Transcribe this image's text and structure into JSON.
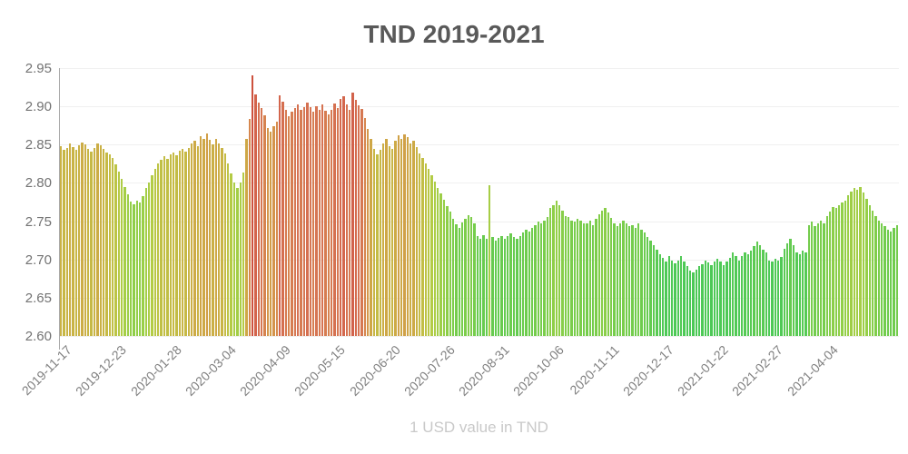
{
  "header": {
    "title": "TND 2019-2021"
  },
  "footer": {
    "caption": "1 USD value in TND"
  },
  "chart_data": {
    "type": "bar",
    "title": "TND 2019-2021",
    "xlabel": "",
    "ylabel": "",
    "subtitle_bottom": "1 USD value in TND",
    "ylim": [
      2.6,
      2.95
    ],
    "y_ticks": [
      2.6,
      2.65,
      2.7,
      2.75,
      2.8,
      2.85,
      2.9,
      2.95
    ],
    "grid": true,
    "legend": "none",
    "x_start_date": "2019-11-17",
    "x_interval_days": 2,
    "x_tick_every_bars": 18,
    "x_tick_labels": [
      "2019-11-17",
      "2019-12-23",
      "2020-01-28",
      "2020-03-04",
      "2020-04-09",
      "2020-05-15",
      "2020-06-20",
      "2020-07-26",
      "2020-08-31",
      "2020-10-06",
      "2020-11-11",
      "2020-12-17",
      "2021-01-22",
      "2021-02-27",
      "2021-04-04"
    ],
    "values": [
      2.848,
      2.843,
      2.846,
      2.851,
      2.847,
      2.843,
      2.849,
      2.853,
      2.85,
      2.845,
      2.841,
      2.846,
      2.852,
      2.849,
      2.845,
      2.84,
      2.837,
      2.832,
      2.824,
      2.815,
      2.805,
      2.795,
      2.785,
      2.776,
      2.772,
      2.777,
      2.774,
      2.783,
      2.794,
      2.801,
      2.81,
      2.818,
      2.825,
      2.83,
      2.835,
      2.831,
      2.837,
      2.84,
      2.836,
      2.842,
      2.845,
      2.841,
      2.846,
      2.851,
      2.855,
      2.848,
      2.861,
      2.857,
      2.865,
      2.856,
      2.85,
      2.857,
      2.852,
      2.846,
      2.838,
      2.826,
      2.812,
      2.8,
      2.793,
      2.801,
      2.814,
      2.858,
      2.884,
      2.94,
      2.916,
      2.905,
      2.898,
      2.888,
      2.872,
      2.867,
      2.874,
      2.88,
      2.915,
      2.906,
      2.896,
      2.887,
      2.893,
      2.898,
      2.903,
      2.895,
      2.899,
      2.905,
      2.899,
      2.893,
      2.9,
      2.896,
      2.902,
      2.894,
      2.889,
      2.896,
      2.904,
      2.898,
      2.91,
      2.913,
      2.902,
      2.896,
      2.918,
      2.909,
      2.901,
      2.897,
      2.885,
      2.871,
      2.858,
      2.845,
      2.837,
      2.843,
      2.852,
      2.858,
      2.848,
      2.845,
      2.855,
      2.862,
      2.857,
      2.864,
      2.86,
      2.851,
      2.855,
      2.847,
      2.839,
      2.833,
      2.826,
      2.818,
      2.81,
      2.802,
      2.793,
      2.786,
      2.778,
      2.77,
      2.762,
      2.753,
      2.746,
      2.741,
      2.748,
      2.753,
      2.758,
      2.755,
      2.747,
      2.731,
      2.727,
      2.732,
      2.727,
      2.797,
      2.729,
      2.725,
      2.728,
      2.731,
      2.727,
      2.73,
      2.734,
      2.729,
      2.727,
      2.731,
      2.735,
      2.739,
      2.737,
      2.741,
      2.745,
      2.749,
      2.747,
      2.751,
      2.755,
      2.767,
      2.771,
      2.777,
      2.771,
      2.764,
      2.757,
      2.755,
      2.751,
      2.749,
      2.753,
      2.751,
      2.747,
      2.747,
      2.751,
      2.745,
      2.753,
      2.759,
      2.764,
      2.767,
      2.761,
      2.754,
      2.747,
      2.743,
      2.747,
      2.751,
      2.747,
      2.743,
      2.745,
      2.741,
      2.747,
      2.739,
      2.735,
      2.729,
      2.725,
      2.719,
      2.713,
      2.707,
      2.702,
      2.697,
      2.704,
      2.699,
      2.695,
      2.699,
      2.704,
      2.697,
      2.691,
      2.686,
      2.683,
      2.687,
      2.691,
      2.694,
      2.699,
      2.696,
      2.692,
      2.697,
      2.701,
      2.697,
      2.693,
      2.697,
      2.702,
      2.709,
      2.704,
      2.699,
      2.705,
      2.709,
      2.707,
      2.711,
      2.717,
      2.724,
      2.719,
      2.713,
      2.709,
      2.699,
      2.697,
      2.701,
      2.699,
      2.703,
      2.714,
      2.721,
      2.727,
      2.719,
      2.709,
      2.707,
      2.711,
      2.709,
      2.745,
      2.749,
      2.743,
      2.747,
      2.751,
      2.747,
      2.757,
      2.763,
      2.769,
      2.767,
      2.771,
      2.774,
      2.777,
      2.784,
      2.789,
      2.794,
      2.791,
      2.795,
      2.787,
      2.779,
      2.771,
      2.764,
      2.757,
      2.751,
      2.747,
      2.743,
      2.739,
      2.737,
      2.741,
      2.745
    ],
    "color_scale": [
      {
        "value": 2.6,
        "color": "#3dc253"
      },
      {
        "value": 2.7,
        "color": "#4ec956"
      },
      {
        "value": 2.74,
        "color": "#6fcc4d"
      },
      {
        "value": 2.78,
        "color": "#97cf47"
      },
      {
        "value": 2.81,
        "color": "#b3cc45"
      },
      {
        "value": 2.84,
        "color": "#c6ba45"
      },
      {
        "value": 2.86,
        "color": "#cfa546"
      },
      {
        "value": 2.88,
        "color": "#d68c4d"
      },
      {
        "value": 2.9,
        "color": "#d67553"
      },
      {
        "value": 2.92,
        "color": "#d2604a"
      },
      {
        "value": 2.95,
        "color": "#cb4936"
      }
    ],
    "colors": {
      "background": "#ffffff",
      "title_text": "#595959",
      "y_tick_text": "#737373",
      "x_tick_text": "#808080",
      "subtitle_text": "#c9c9c9",
      "gridline": "#f0f0f0",
      "axis_line": "#aaaaaa"
    }
  }
}
